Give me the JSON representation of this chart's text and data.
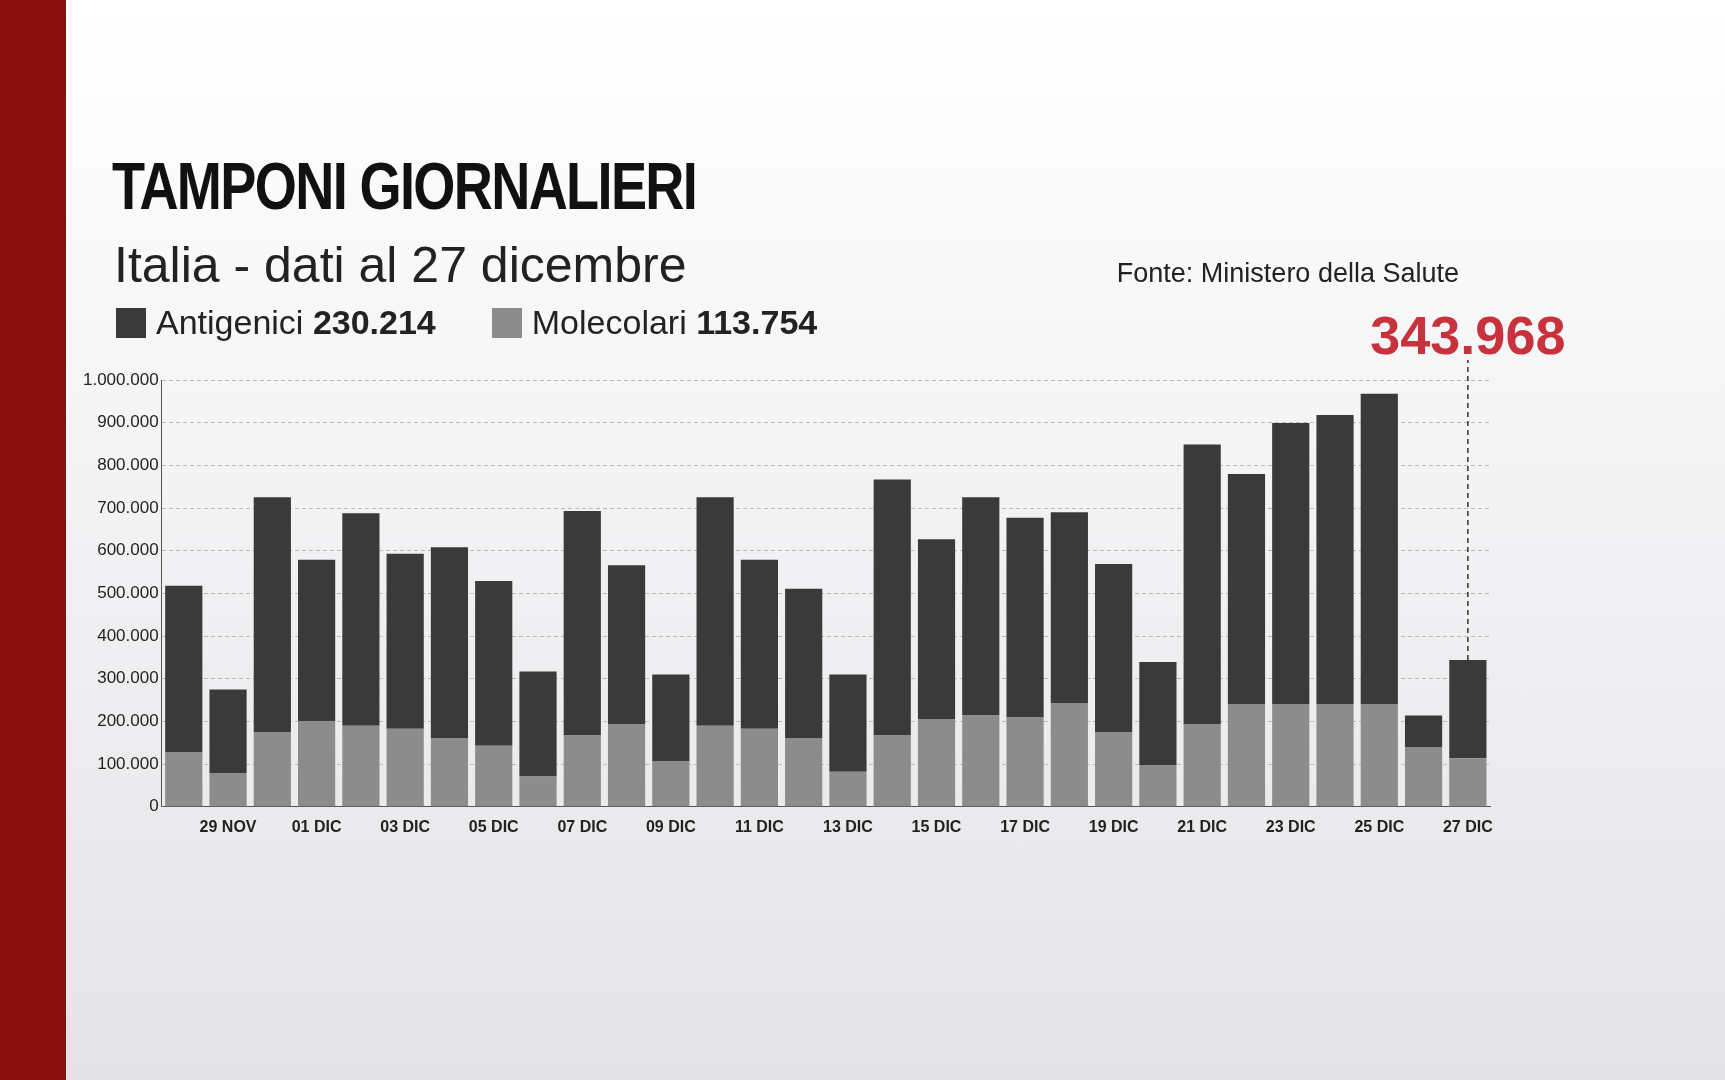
{
  "chart_data": {
    "type": "bar",
    "title": "TAMPONI GIORNALIERI",
    "subtitle": "Italia - dati al 27 dicembre",
    "categories": [
      null,
      "29 NOV",
      null,
      "01 DIC",
      null,
      "03 DIC",
      null,
      "05 DIC",
      null,
      "07 DIC",
      null,
      "09 DIC",
      null,
      "11 DIC",
      null,
      "13 DIC",
      null,
      "15 DIC",
      null,
      "17 DIC",
      null,
      "19 DIC",
      null,
      "21 DIC",
      null,
      "23 DIC",
      null,
      "25 DIC",
      null,
      "27 DIC"
    ],
    "stacked": true,
    "series": [
      {
        "name": "Molecolari 113.754",
        "color": "#8c8c8c",
        "values": [
          127000,
          79000,
          175000,
          201000,
          190000,
          183000,
          161000,
          143000,
          71000,
          167000,
          193000,
          106000,
          190000,
          183000,
          161000,
          82000,
          167000,
          206000,
          214000,
          209000,
          243000,
          175000,
          98000,
          193000,
          241000,
          241000,
          241000,
          241000,
          140000,
          113754
        ]
      },
      {
        "name": "Antigenici 230.214",
        "color": "#3a3a3a",
        "values": [
          391000,
          196000,
          550000,
          378000,
          498000,
          410000,
          447000,
          386000,
          246000,
          526000,
          373000,
          204000,
          535000,
          396000,
          350000,
          228000,
          600000,
          421000,
          511000,
          468000,
          447000,
          394000,
          241000,
          656000,
          539000,
          658000,
          677000,
          727000,
          74000,
          230214
        ]
      }
    ],
    "ylim": [
      0,
      1000000
    ],
    "yticks": [
      {
        "value": 0,
        "label": "0"
      },
      {
        "value": 100000,
        "label": "100.000"
      },
      {
        "value": 200000,
        "label": "200.000"
      },
      {
        "value": 300000,
        "label": "300.000"
      },
      {
        "value": 400000,
        "label": "400.000"
      },
      {
        "value": 500000,
        "label": "500.000"
      },
      {
        "value": 600000,
        "label": "600.000"
      },
      {
        "value": 700000,
        "label": "700.000"
      },
      {
        "value": 800000,
        "label": "800.000"
      },
      {
        "value": 900000,
        "label": "900.000"
      },
      {
        "value": 1000000,
        "label": "1.000.000"
      }
    ],
    "grid": "y",
    "legend": "top left",
    "annotations": [
      "Fonte: Ministero della Salute",
      {
        "text": "343.968",
        "x": "27 DIC",
        "y": 343968
      }
    ]
  }
}
